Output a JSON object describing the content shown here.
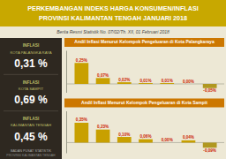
{
  "title": [
    "PERKEMBANGAN INDEKS HARGA KONSUMEN/INFLASI",
    "PROVINSI KALIMANTAN TENGAH JANUARI 2018"
  ],
  "subtitle": "Berita Resmi Statistik No. 07/02/Th. XII, 01 Februari 2018",
  "annotations": [
    [
      "INFLASI",
      "KOTA PALANGKA RAYA",
      "0,31 %"
    ],
    [
      "INFLASI",
      "KOTA SAMPIT",
      "0,69 %"
    ],
    [
      "INFLASI",
      "KALIMANTAN TENGAH",
      "0,45 %"
    ],
    [
      "BADAN PUSAT STATISTIK",
      "PROVINSI KALIMANTAN TENGAH"
    ]
  ],
  "chart_data": [
    {
      "type": "bar",
      "title": "Andil Inflasi Menurut Kelompok Pengeluaran di Kota Palangkaraya",
      "categories": [
        null,
        null,
        null,
        null,
        null,
        null,
        null
      ],
      "values": [
        0.25,
        0.07,
        0.02,
        0.01,
        0.01,
        0.0,
        -0.05
      ],
      "value_labels": [
        "0,25%",
        "0,07%",
        "0,02%",
        "0,01%",
        "0,01%",
        "0,00%",
        "-0,05%"
      ],
      "colors": [
        "#c8a000",
        "#c8a000",
        "#c8a000",
        "#c8a000",
        "#c8a000",
        "#c8a000",
        "#b09820"
      ],
      "ylim": [
        -0.1,
        0.4
      ],
      "data_labels": true,
      "tick_labels": false
    },
    {
      "type": "bar",
      "title": "Andil Inflasi Menurut Kelompok Pengeluaran di Kota Sampit",
      "categories": [
        null,
        null,
        null,
        null,
        null,
        null,
        null
      ],
      "values": [
        0.35,
        0.23,
        0.1,
        0.06,
        0.0,
        0.04,
        -0.09
      ],
      "value_labels": [
        "0,35%",
        "0,23%",
        "0,10%",
        "0,06%",
        "0,00%",
        "0,04%",
        "-0,09%"
      ],
      "colors": [
        "#c8a000",
        "#c8a000",
        "#c8a000",
        "#c8a000",
        "#c8a000",
        "#c8a000",
        "#b09820"
      ],
      "ylim": [
        -0.18,
        0.56
      ],
      "data_labels": true,
      "tick_labels": false
    }
  ]
}
